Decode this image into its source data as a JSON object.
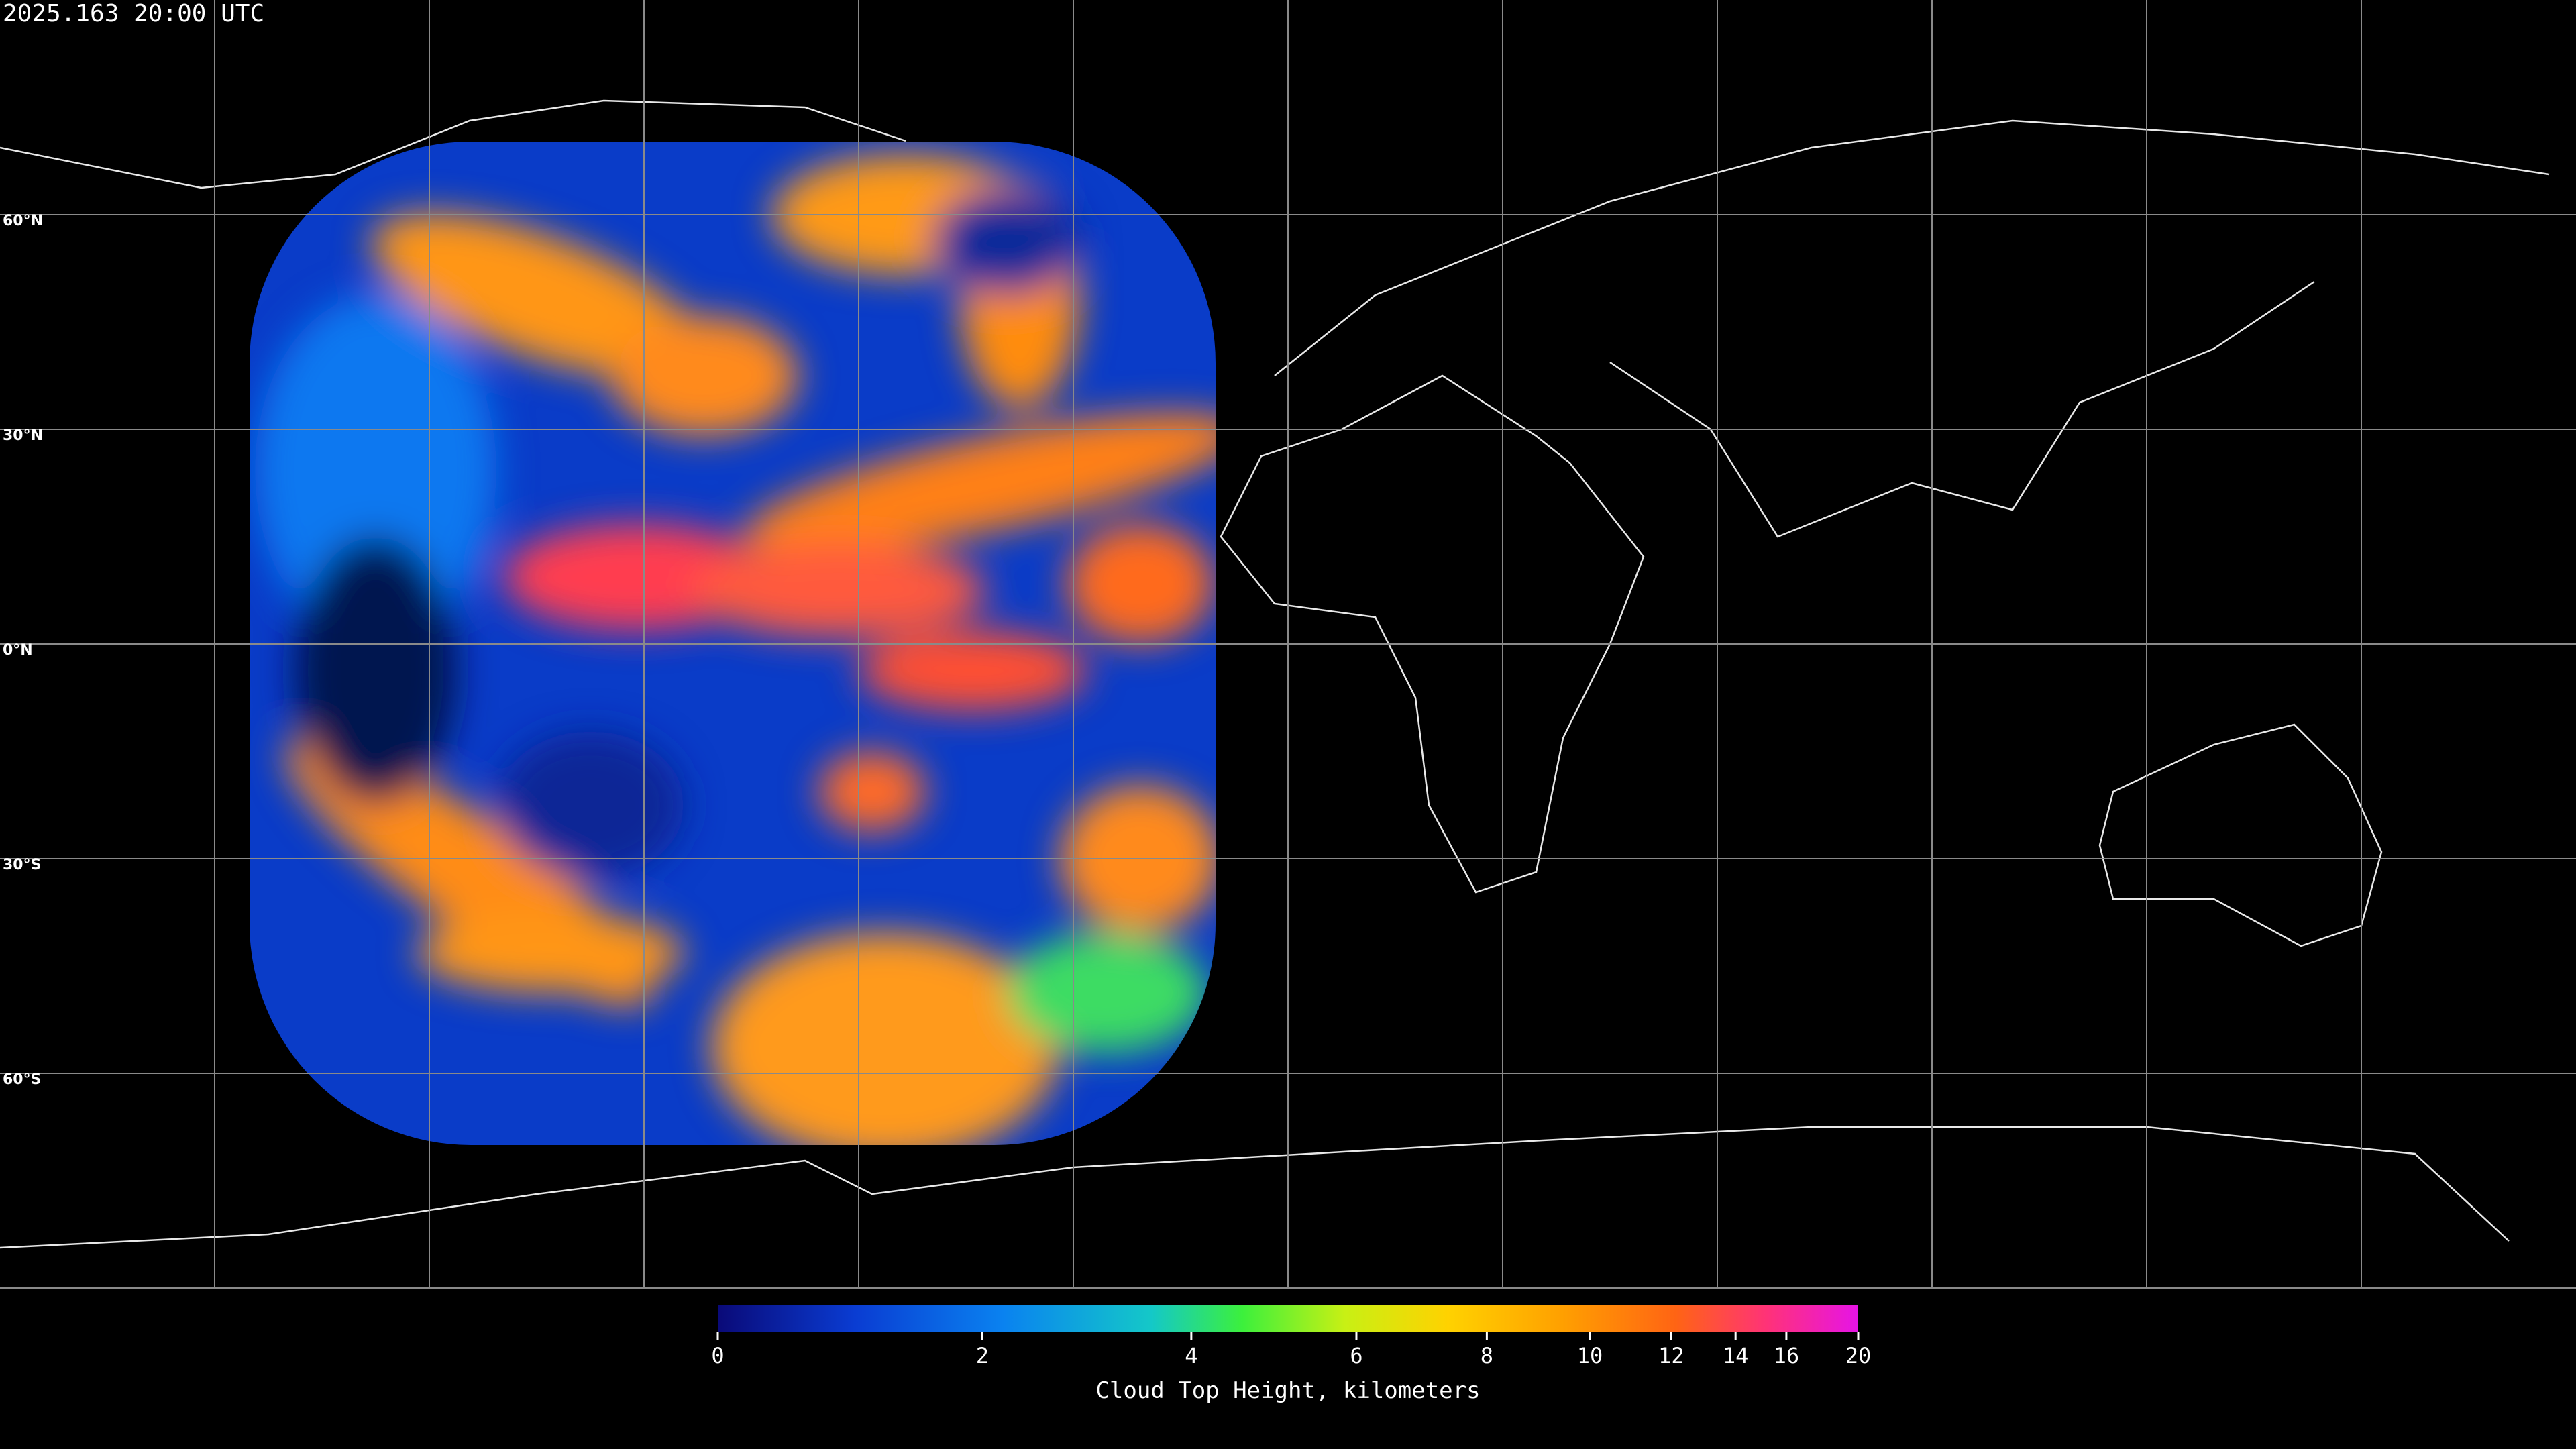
{
  "header": {
    "title": "2025.163 20:00 UTC"
  },
  "map": {
    "lat_labels": [
      "60°N",
      "30°N",
      "0°N",
      "30°S",
      "60°S"
    ]
  },
  "colorbar": {
    "lim": [
      0,
      20
    ],
    "ticks": [
      0,
      2,
      4,
      6,
      8,
      10,
      12,
      14,
      16,
      20
    ],
    "label": "Cloud Top Height, kilometers"
  }
}
